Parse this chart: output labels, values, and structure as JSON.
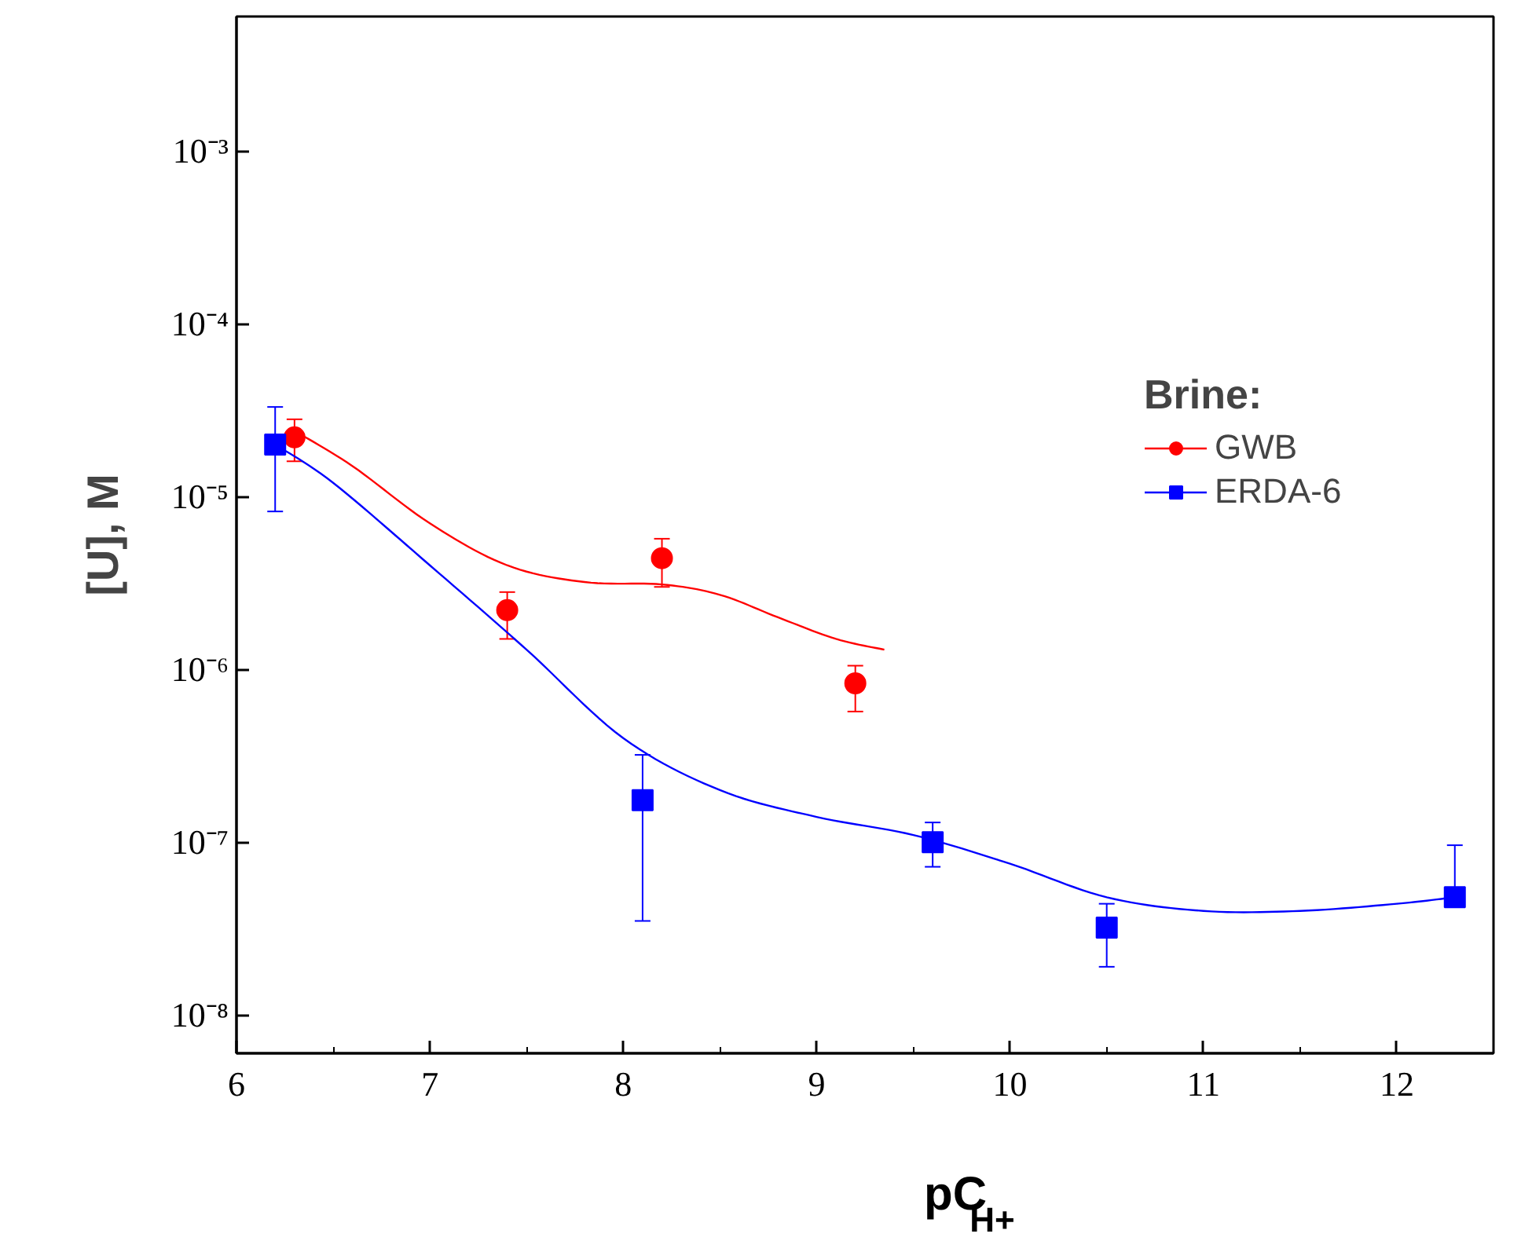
{
  "chart_data": {
    "type": "scatter",
    "xlabel": "pC$_{H+}$",
    "ylabel": "[U], M",
    "legend_title": "Brine:",
    "legend": "right",
    "log": "y",
    "grid": false,
    "xlim": [
      6,
      12.5
    ],
    "xticks": [
      6,
      7,
      8,
      9,
      10,
      11,
      12
    ],
    "ylim": [
      6e-09,
      0.006
    ],
    "yticks": [
      {
        "value": 1e-08,
        "label": "10⁻⁸"
      },
      {
        "value": 1e-07,
        "label": "10⁻⁷"
      },
      {
        "value": 1e-06,
        "label": "10⁻⁶"
      },
      {
        "value": 1e-05,
        "label": "10⁻⁵"
      },
      {
        "value": 0.0001,
        "label": "10⁻⁴"
      },
      {
        "value": 0.001,
        "label": "10⁻³"
      }
    ],
    "series": [
      {
        "name": "GWB",
        "marker": "circle",
        "color": "#ff0000",
        "x": [
          6.3,
          7.4,
          8.2,
          9.2
        ],
        "values": [
          2.2e-05,
          2.2e-06,
          4.4e-06,
          8.3e-07
        ],
        "errors": [
          [
            1.6e-05,
            2.8e-05
          ],
          [
            1.5e-06,
            2.8e-06
          ],
          [
            3e-06,
            5.7e-06
          ],
          [
            5.7e-07,
            1.05e-06
          ]
        ]
      },
      {
        "name": "ERDA-6",
        "marker": "square",
        "color": "#0000ff",
        "x": [
          6.2,
          8.1,
          9.6,
          10.5,
          12.3
        ],
        "values": [
          2e-05,
          1.75e-07,
          1e-07,
          3.2e-08,
          4.8e-08
        ],
        "errors": [
          [
            8.2e-06,
            3.3e-05
          ],
          [
            3.5e-08,
            3.2e-07
          ],
          [
            7.2e-08,
            1.3e-07
          ],
          [
            1.9e-08,
            4.4e-08
          ],
          [
            4.8e-08,
            9.6e-08
          ]
        ]
      },
      {
        "type": "line",
        "color": "#ff0000",
        "x": [
          6.3,
          6.6,
          7.0,
          7.4,
          7.8,
          8.2,
          8.5,
          8.8,
          9.1,
          9.35
        ],
        "values": [
          2.4e-05,
          1.5e-05,
          7e-06,
          4e-06,
          3.2e-06,
          3.1e-06,
          2.7e-06,
          2e-06,
          1.5e-06,
          1.3e-06
        ]
      },
      {
        "type": "line",
        "color": "#0000ff",
        "x": [
          6.2,
          6.5,
          7.0,
          7.5,
          8.0,
          8.5,
          9.0,
          9.5,
          10.0,
          10.5,
          11.0,
          11.5,
          12.0,
          12.3
        ],
        "values": [
          2e-05,
          1.2e-05,
          4e-06,
          1.3e-06,
          4e-07,
          2e-07,
          1.4e-07,
          1.1e-07,
          7.5e-08,
          4.8e-08,
          4e-08,
          4e-08,
          4.4e-08,
          4.8e-08
        ]
      }
    ]
  }
}
